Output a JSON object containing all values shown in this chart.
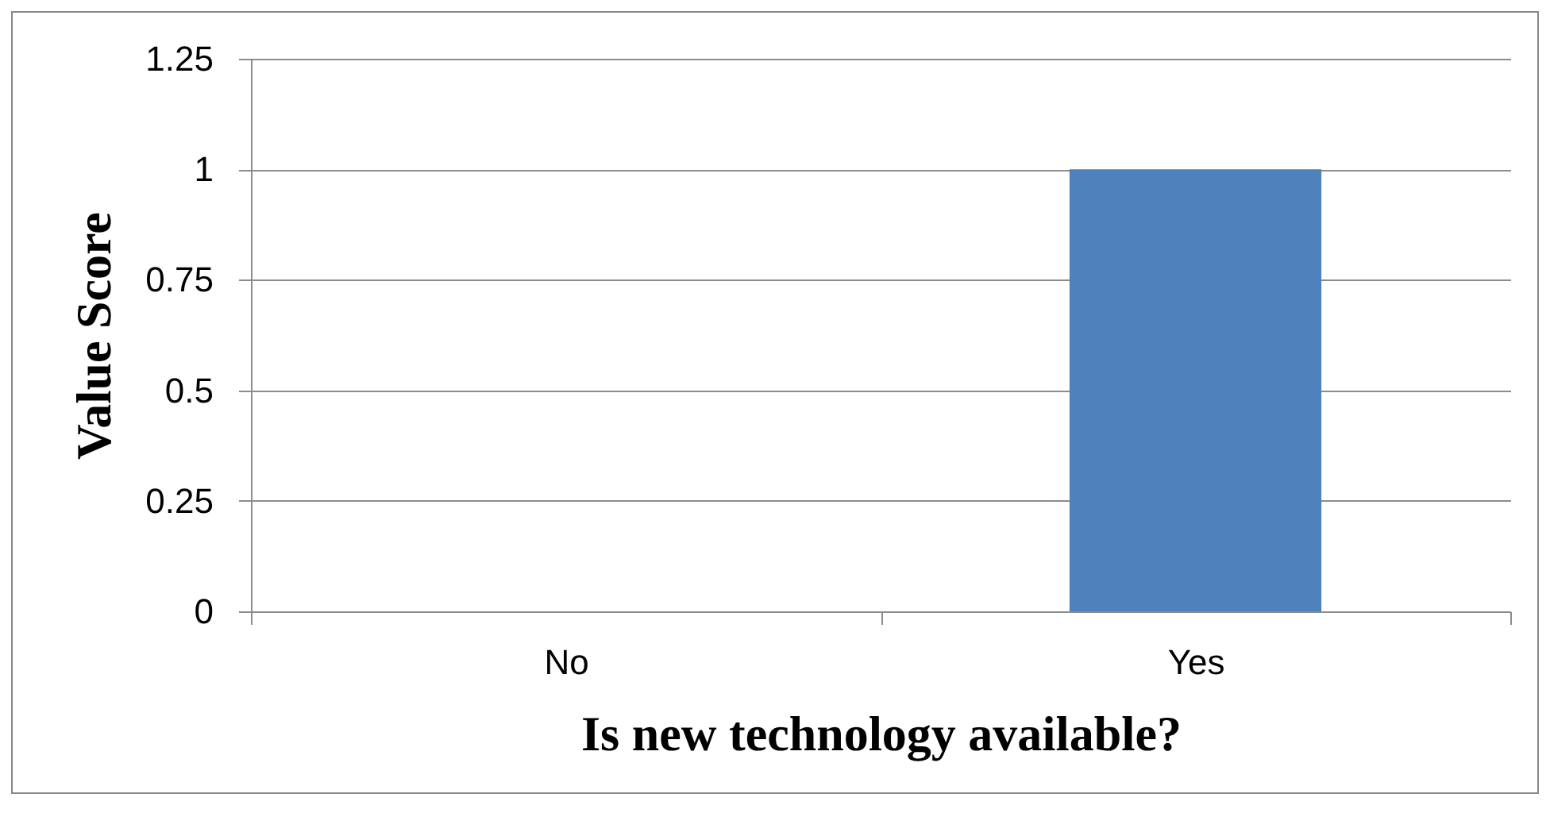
{
  "chart_data": {
    "type": "bar",
    "xlabel": "Is new technology available?",
    "ylabel": "Value Score",
    "categories": [
      "No",
      "Yes"
    ],
    "values": [
      0,
      1
    ],
    "color": "#4f81bd",
    "ylim": [
      0,
      1.25
    ],
    "yticks": [
      0,
      0.25,
      0.5,
      0.75,
      1,
      1.25
    ],
    "grid": "y"
  }
}
